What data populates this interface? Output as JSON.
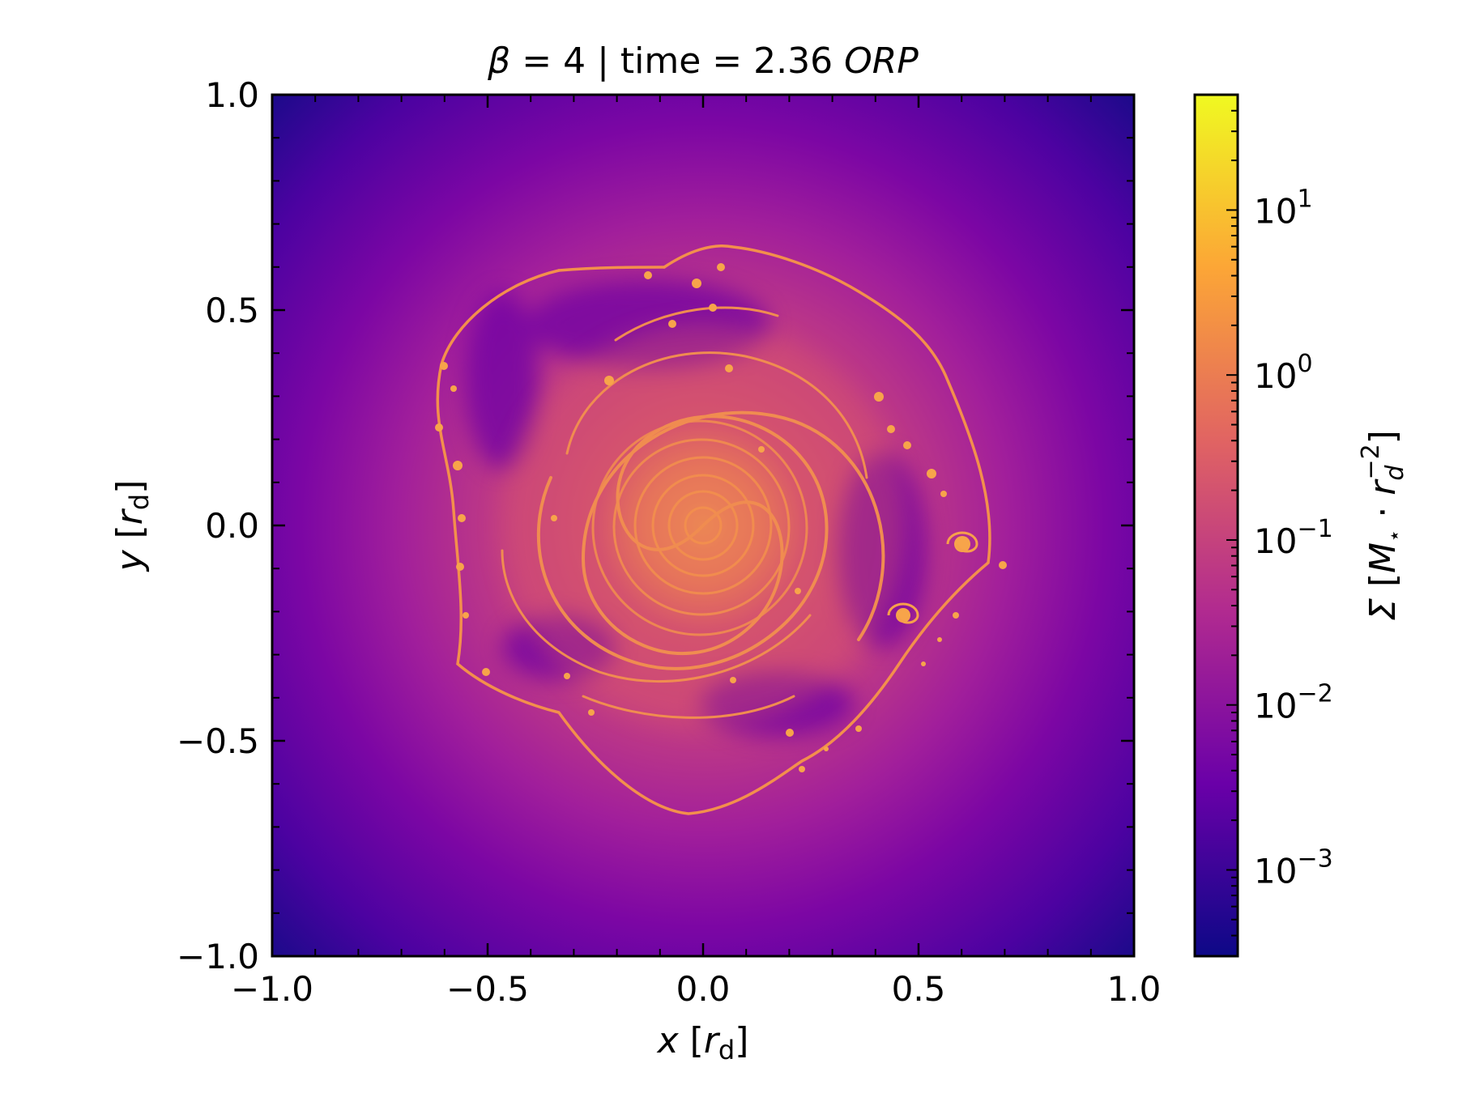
{
  "chart_data": {
    "type": "heatmap",
    "title": {
      "beta_symbol": "β",
      "beta_text": " = 4 | time = 2.36 ",
      "unit": "ORP"
    },
    "xlabel": {
      "var": "x",
      "open": " [",
      "r": "r",
      "sub": "d",
      "close": "]"
    },
    "ylabel": {
      "var": "y",
      "open": " [",
      "r": "r",
      "sub": "d",
      "close": "]"
    },
    "xlim": [
      -1.0,
      1.0
    ],
    "ylim": [
      -1.0,
      1.0
    ],
    "x_ticks": [
      "−1.0",
      "−0.5",
      "0.0",
      "0.5",
      "1.0"
    ],
    "y_ticks": [
      "−1.0",
      "−0.5",
      "0.0",
      "0.5",
      "1.0"
    ],
    "x_tick_values": [
      -1.0,
      -0.5,
      0.0,
      0.5,
      1.0
    ],
    "y_tick_values": [
      -1.0,
      -0.5,
      0.0,
      0.5,
      1.0
    ],
    "grid": false,
    "colormap": "plasma",
    "colormap_stops": [
      "#0d0887",
      "#6a00a8",
      "#b12a90",
      "#e16462",
      "#fca636",
      "#f0f921"
    ],
    "colorbar": {
      "scale": "log",
      "range": [
        0.0003,
        50
      ],
      "tick_values": [
        0.001,
        0.01,
        0.1,
        1,
        10
      ],
      "tick_base": "10",
      "tick_exponents": [
        "−3",
        "−2",
        "−1",
        "0",
        "1"
      ],
      "label": {
        "sigma": "Σ",
        "open": " [",
        "M": "M",
        "star": "⋆",
        "dot": " · ",
        "r": "r",
        "r_sub": "d",
        "r_sup": "−2",
        "close": "]"
      }
    },
    "feature": "self-gravitating disc surface density with spiral arms and fragments",
    "disc_edge_radius": 0.7
  }
}
